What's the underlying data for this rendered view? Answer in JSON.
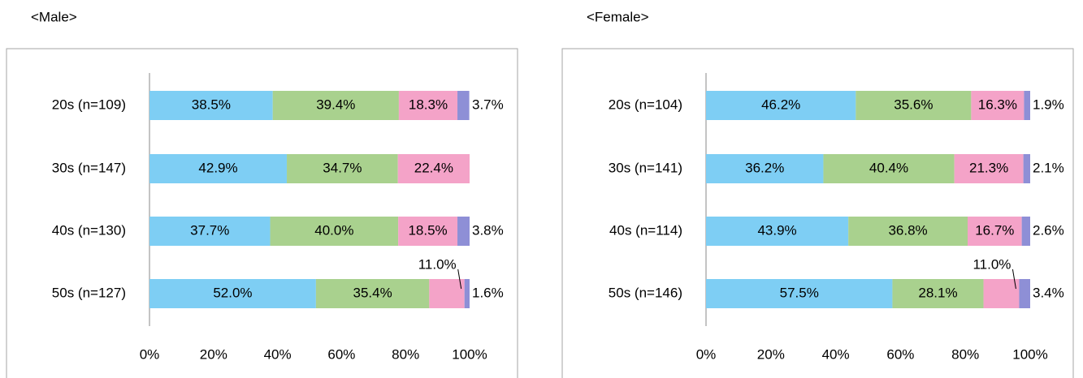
{
  "chart_data": [
    {
      "type": "bar",
      "title": "<Male>",
      "categories": [
        "20s (n=109)",
        "30s (n=147)",
        "40s (n=130)",
        "50s (n=127)"
      ],
      "series": [
        {
          "color": "#7ecef4",
          "values": [
            38.5,
            42.9,
            37.7,
            52.0
          ],
          "value_labels": [
            "38.5%",
            "42.9%",
            "37.7%",
            "52.0%"
          ]
        },
        {
          "color": "#a9d18e",
          "values": [
            39.4,
            34.7,
            40.0,
            35.4
          ],
          "value_labels": [
            "39.4%",
            "34.7%",
            "40.0%",
            "35.4%"
          ]
        },
        {
          "color": "#f4a3c8",
          "values": [
            18.3,
            22.4,
            18.5,
            11.0
          ],
          "value_labels": [
            "18.3%",
            "22.4%",
            "18.5%",
            "11.0%"
          ]
        },
        {
          "color": "#8e8fd6",
          "values": [
            3.7,
            null,
            3.8,
            1.6
          ],
          "value_labels": [
            "3.7%",
            null,
            "3.8%",
            "1.6%"
          ]
        }
      ],
      "xlim": [
        0,
        100
      ],
      "xticks": [
        {
          "value": 0,
          "label": "0%"
        },
        {
          "value": 20,
          "label": "20%"
        },
        {
          "value": 40,
          "label": "40%"
        },
        {
          "value": 60,
          "label": "60%"
        },
        {
          "value": 80,
          "label": "80%"
        },
        {
          "value": 100,
          "label": "100%"
        }
      ]
    },
    {
      "type": "bar",
      "title": "<Female>",
      "categories": [
        "20s (n=104)",
        "30s (n=141)",
        "40s (n=114)",
        "50s (n=146)"
      ],
      "series": [
        {
          "color": "#7ecef4",
          "values": [
            46.2,
            36.2,
            43.9,
            57.5
          ],
          "value_labels": [
            "46.2%",
            "36.2%",
            "43.9%",
            "57.5%"
          ]
        },
        {
          "color": "#a9d18e",
          "values": [
            35.6,
            40.4,
            36.8,
            28.1
          ],
          "value_labels": [
            "35.6%",
            "40.4%",
            "36.8%",
            "28.1%"
          ]
        },
        {
          "color": "#f4a3c8",
          "values": [
            16.3,
            21.3,
            16.7,
            11.0
          ],
          "value_labels": [
            "16.3%",
            "21.3%",
            "16.7%",
            "11.0%"
          ]
        },
        {
          "color": "#8e8fd6",
          "values": [
            1.9,
            2.1,
            2.6,
            3.4
          ],
          "value_labels": [
            "1.9%",
            "2.1%",
            "2.6%",
            "3.4%"
          ]
        }
      ],
      "xlim": [
        0,
        100
      ],
      "xticks": [
        {
          "value": 0,
          "label": "0%"
        },
        {
          "value": 20,
          "label": "20%"
        },
        {
          "value": 40,
          "label": "40%"
        },
        {
          "value": 60,
          "label": "60%"
        },
        {
          "value": 80,
          "label": "80%"
        },
        {
          "value": 100,
          "label": "100%"
        }
      ]
    }
  ]
}
